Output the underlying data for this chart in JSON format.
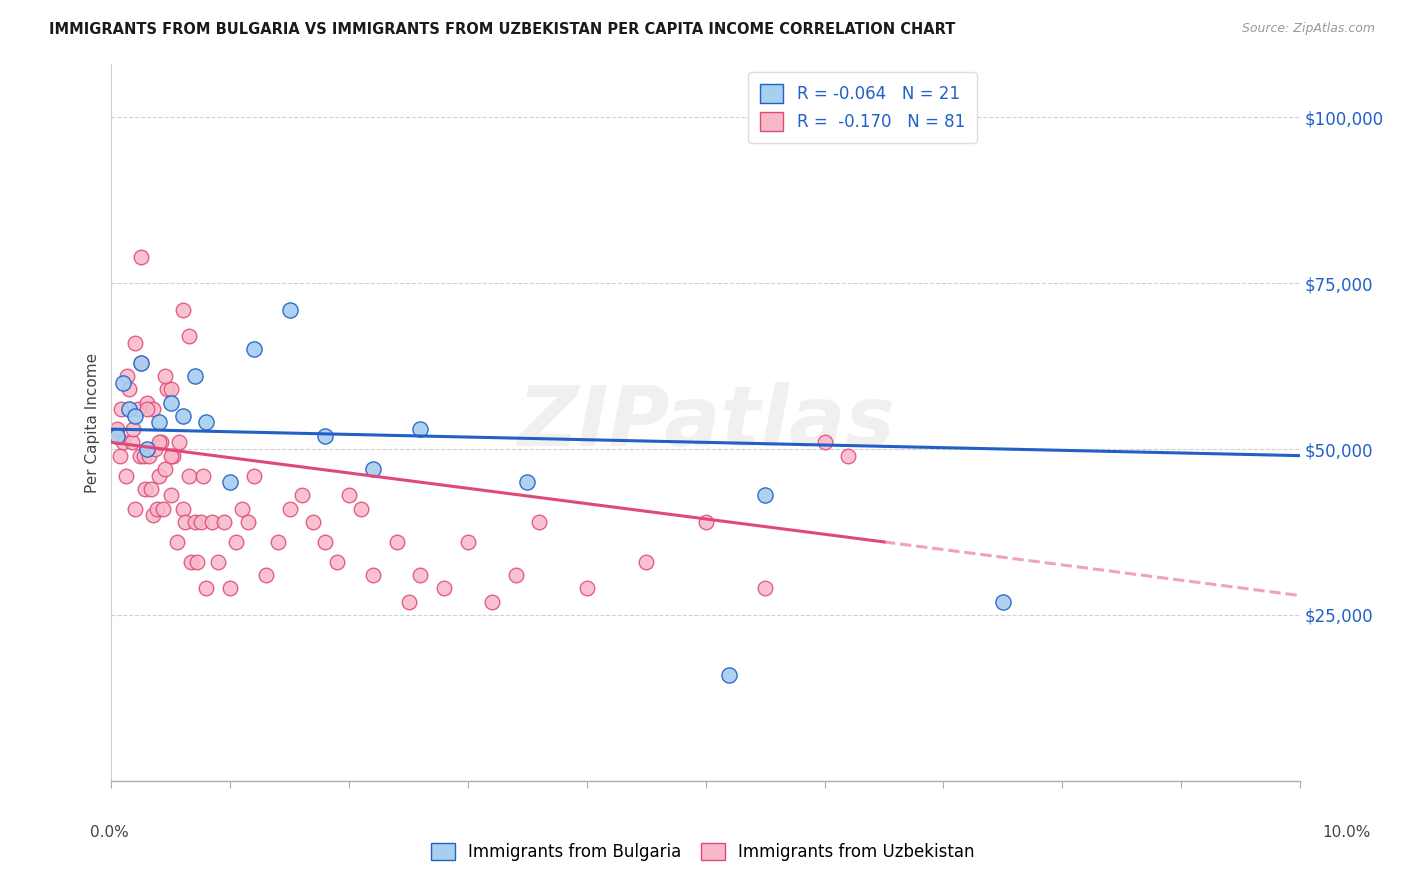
{
  "title": "IMMIGRANTS FROM BULGARIA VS IMMIGRANTS FROM UZBEKISTAN PER CAPITA INCOME CORRELATION CHART",
  "source": "Source: ZipAtlas.com",
  "ylabel": "Per Capita Income",
  "ytick_labels": [
    "$25,000",
    "$50,000",
    "$75,000",
    "$100,000"
  ],
  "ytick_vals": [
    25000,
    50000,
    75000,
    100000
  ],
  "xlim": [
    0,
    10.0
  ],
  "ylim": [
    0,
    108000
  ],
  "legend_label1": "Immigrants from Bulgaria",
  "legend_label2": "Immigrants from Uzbekistan",
  "R1": "-0.064",
  "N1": "21",
  "R2": "-0.170",
  "N2": "81",
  "color_bulgaria_fill": "#a8cef0",
  "color_uzbekistan_fill": "#f8b8c8",
  "color_line_bulgaria": "#2060c8",
  "color_line_uzbekistan": "#e04878",
  "watermark": "ZIPatlas",
  "bg_color": "#ffffff",
  "bulgaria_x": [
    0.05,
    0.1,
    0.15,
    0.2,
    0.25,
    0.3,
    0.4,
    0.5,
    0.6,
    0.7,
    0.8,
    1.0,
    1.2,
    1.5,
    1.8,
    2.2,
    2.6,
    3.5,
    5.5,
    7.5,
    5.2
  ],
  "bulgaria_y": [
    52000,
    60000,
    56000,
    55000,
    63000,
    50000,
    54000,
    57000,
    55000,
    61000,
    54000,
    45000,
    65000,
    71000,
    52000,
    47000,
    53000,
    45000,
    43000,
    27000,
    16000
  ],
  "uzbekistan_x": [
    0.05,
    0.07,
    0.08,
    0.1,
    0.12,
    0.13,
    0.15,
    0.17,
    0.18,
    0.2,
    0.22,
    0.24,
    0.25,
    0.27,
    0.28,
    0.3,
    0.32,
    0.33,
    0.35,
    0.37,
    0.38,
    0.4,
    0.42,
    0.43,
    0.45,
    0.47,
    0.5,
    0.52,
    0.55,
    0.57,
    0.6,
    0.62,
    0.65,
    0.67,
    0.7,
    0.72,
    0.75,
    0.77,
    0.8,
    0.85,
    0.9,
    0.95,
    1.0,
    1.05,
    1.1,
    1.15,
    1.2,
    1.3,
    1.4,
    1.5,
    1.6,
    1.7,
    1.8,
    1.9,
    2.0,
    2.1,
    2.2,
    2.4,
    2.5,
    2.6,
    2.8,
    3.0,
    3.2,
    3.4,
    3.6,
    4.0,
    4.5,
    5.0,
    5.5,
    6.0,
    6.2,
    0.2,
    0.35,
    0.5,
    0.65,
    0.3,
    0.45,
    0.6,
    0.4,
    0.5,
    0.25
  ],
  "uzbekistan_y": [
    53000,
    49000,
    56000,
    51000,
    46000,
    61000,
    59000,
    51000,
    53000,
    41000,
    56000,
    49000,
    63000,
    49000,
    44000,
    57000,
    49000,
    44000,
    40000,
    50000,
    41000,
    46000,
    51000,
    41000,
    47000,
    59000,
    43000,
    49000,
    36000,
    51000,
    41000,
    39000,
    46000,
    33000,
    39000,
    33000,
    39000,
    46000,
    29000,
    39000,
    33000,
    39000,
    29000,
    36000,
    41000,
    39000,
    46000,
    31000,
    36000,
    41000,
    43000,
    39000,
    36000,
    33000,
    43000,
    41000,
    31000,
    36000,
    27000,
    31000,
    29000,
    36000,
    27000,
    31000,
    39000,
    29000,
    33000,
    39000,
    29000,
    51000,
    49000,
    66000,
    56000,
    59000,
    67000,
    56000,
    61000,
    71000,
    51000,
    49000,
    79000
  ]
}
